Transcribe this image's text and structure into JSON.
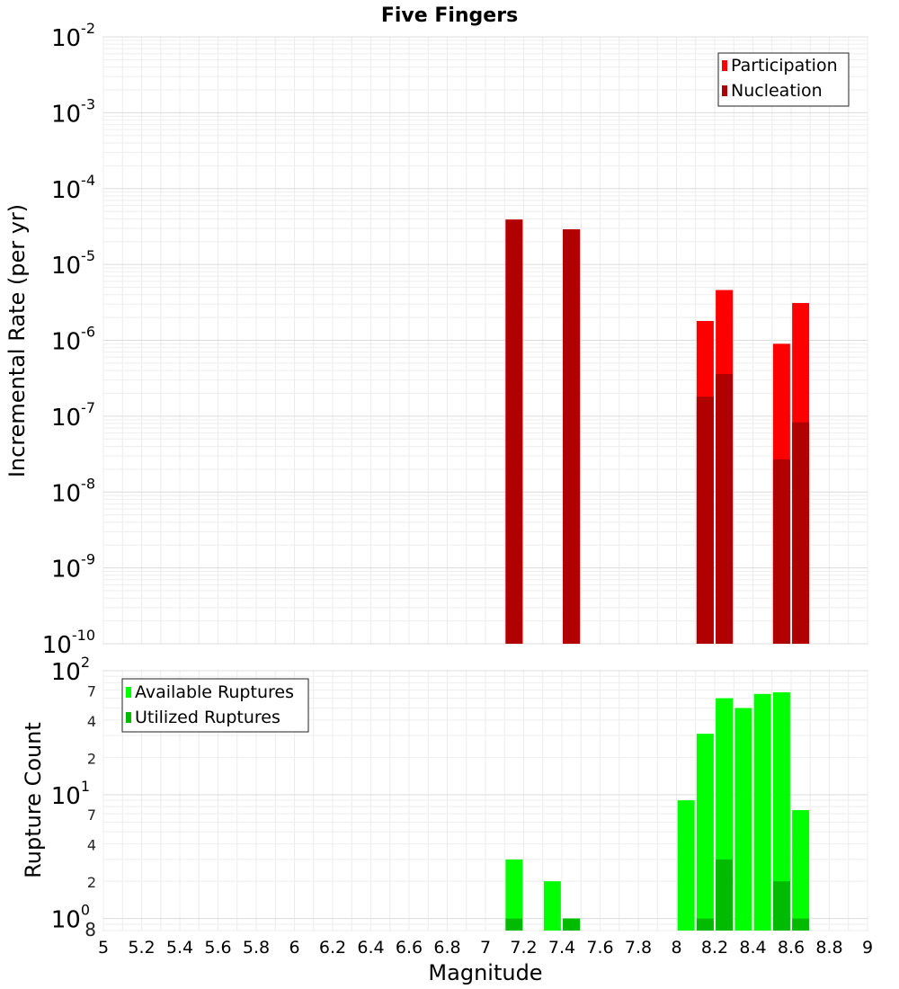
{
  "chart_data": [
    {
      "type": "bar",
      "title": "Five Fingers",
      "xlabel": "",
      "ylabel": "Incremental Rate (per yr)",
      "x_range": [
        5,
        9
      ],
      "y_scale": "log",
      "y_range": [
        1e-10,
        0.01
      ],
      "grid": true,
      "legend_position": "top-right",
      "colors": {
        "Participation": "#ff0000",
        "Nucleation": "#b00000"
      },
      "y_ticks": [
        {
          "value": 1e-10,
          "base": "10",
          "exp": "-10"
        },
        {
          "value": 1e-09,
          "base": "10",
          "exp": "-9"
        },
        {
          "value": 1e-08,
          "base": "10",
          "exp": "-8"
        },
        {
          "value": 1e-07,
          "base": "10",
          "exp": "-7"
        },
        {
          "value": 1e-06,
          "base": "10",
          "exp": "-6"
        },
        {
          "value": 1e-05,
          "base": "10",
          "exp": "-5"
        },
        {
          "value": 0.0001,
          "base": "10",
          "exp": "-4"
        },
        {
          "value": 0.001,
          "base": "10",
          "exp": "-3"
        },
        {
          "value": 0.01,
          "base": "10",
          "exp": "-2"
        }
      ],
      "series": [
        {
          "name": "Participation",
          "points": [
            {
              "x": 7.15,
              "y": 3.9e-05
            },
            {
              "x": 7.45,
              "y": 2.9e-05
            },
            {
              "x": 8.15,
              "y": 1.8e-06
            },
            {
              "x": 8.25,
              "y": 4.6e-06
            },
            {
              "x": 8.55,
              "y": 9e-07
            },
            {
              "x": 8.65,
              "y": 3.1e-06
            }
          ]
        },
        {
          "name": "Nucleation",
          "points": [
            {
              "x": 7.15,
              "y": 3.9e-05
            },
            {
              "x": 7.45,
              "y": 2.9e-05
            },
            {
              "x": 8.15,
              "y": 1.8e-07
            },
            {
              "x": 8.25,
              "y": 3.6e-07
            },
            {
              "x": 8.55,
              "y": 2.7e-08
            },
            {
              "x": 8.65,
              "y": 8.3e-08
            }
          ]
        }
      ]
    },
    {
      "type": "bar",
      "title": "",
      "xlabel": "Magnitude",
      "ylabel": "Rupture Count",
      "x_range": [
        5,
        9
      ],
      "y_scale": "log",
      "y_range": [
        0.8,
        100
      ],
      "grid": true,
      "legend_position": "top-left",
      "colors": {
        "Available Ruptures": "#00ff00",
        "Utilized Ruptures": "#00bb00"
      },
      "x_ticks": [
        "5",
        "5.2",
        "5.4",
        "5.6",
        "5.8",
        "6",
        "6.2",
        "6.4",
        "6.6",
        "6.8",
        "7",
        "7.2",
        "7.4",
        "7.6",
        "7.8",
        "8",
        "8.2",
        "8.4",
        "8.6",
        "8.8",
        "9"
      ],
      "y_major_ticks": [
        {
          "value": 1,
          "base": "10",
          "exp": "0"
        },
        {
          "value": 10,
          "base": "10",
          "exp": "1"
        },
        {
          "value": 100,
          "base": "10",
          "exp": "2"
        }
      ],
      "y_minor_ticks": [
        {
          "value": 0.8,
          "label": "8"
        },
        {
          "value": 2,
          "label": "2"
        },
        {
          "value": 4,
          "label": "4"
        },
        {
          "value": 7,
          "label": "7"
        },
        {
          "value": 20,
          "label": "2"
        },
        {
          "value": 40,
          "label": "4"
        },
        {
          "value": 70,
          "label": "7"
        }
      ],
      "series": [
        {
          "name": "Available Ruptures",
          "points": [
            {
              "x": 7.15,
              "y": 3
            },
            {
              "x": 7.35,
              "y": 2
            },
            {
              "x": 7.45,
              "y": 1
            },
            {
              "x": 8.05,
              "y": 9
            },
            {
              "x": 8.15,
              "y": 31
            },
            {
              "x": 8.25,
              "y": 60
            },
            {
              "x": 8.35,
              "y": 50
            },
            {
              "x": 8.45,
              "y": 65
            },
            {
              "x": 8.55,
              "y": 67
            },
            {
              "x": 8.65,
              "y": 7.5
            }
          ]
        },
        {
          "name": "Utilized Ruptures",
          "points": [
            {
              "x": 7.15,
              "y": 1
            },
            {
              "x": 7.45,
              "y": 1
            },
            {
              "x": 8.15,
              "y": 1
            },
            {
              "x": 8.25,
              "y": 3
            },
            {
              "x": 8.55,
              "y": 2
            },
            {
              "x": 8.65,
              "y": 1
            }
          ]
        }
      ]
    }
  ]
}
